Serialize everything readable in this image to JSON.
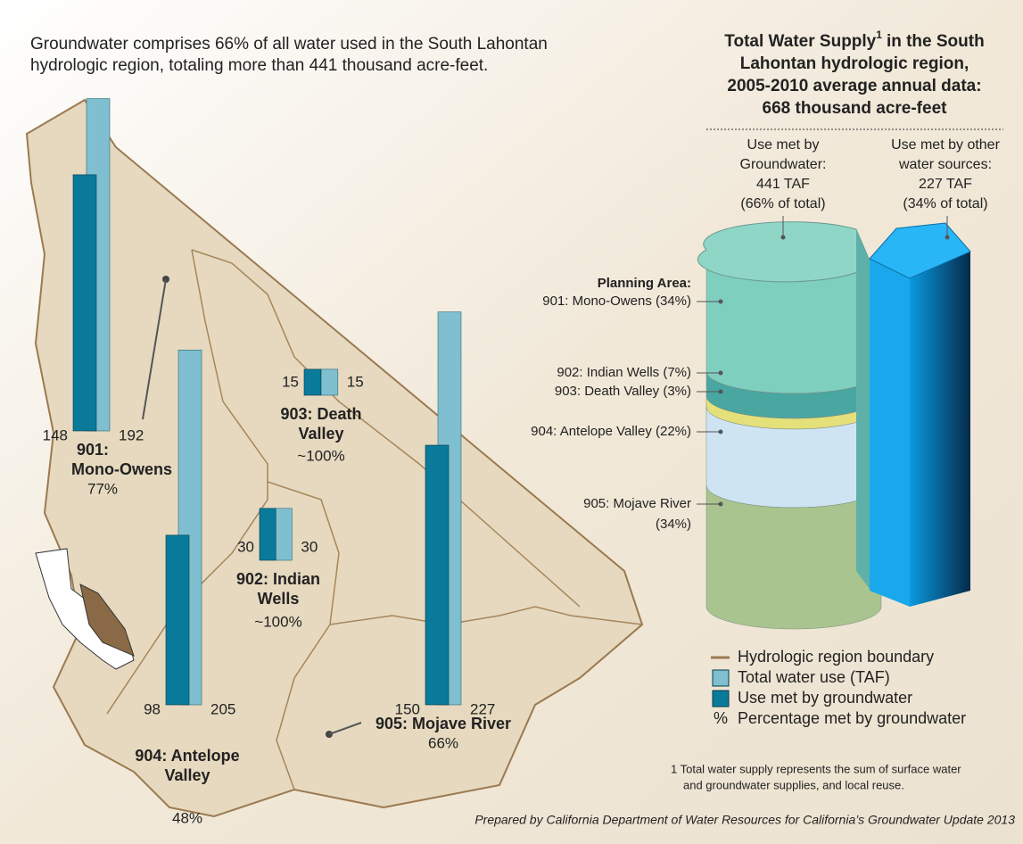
{
  "intro_lines": [
    "Groundwater comprises 66% of all water used in the South Lahontan",
    "hydrologic region, totaling more than 441 thousand acre-feet."
  ],
  "supply": {
    "title": {
      "before_note": "Total Water Supply",
      "note": "1",
      "after_note": "in the South",
      "lines": [
        "Lahontan hydrologic region,",
        "2005-2010 average annual data:",
        "668 thousand acre-feet"
      ]
    },
    "groundwater_lines": [
      "Use met by",
      "Groundwater:",
      "441 TAF",
      "(66% of total)"
    ],
    "other_lines": [
      "Use met by other",
      "water sources:",
      "227 TAF",
      "(34% of total)"
    ],
    "planning_area_heading": "Planning Area:",
    "segments": [
      {
        "label_lines": [
          "901: Mono-Owens (34%)"
        ],
        "share": 34,
        "color": "#7fcfbf"
      },
      {
        "label_lines": [
          "902: Indian Wells (7%)"
        ],
        "share": 7,
        "color": "#4aa6a0"
      },
      {
        "label_lines": [
          "903: Death Valley (3%)"
        ],
        "share": 3,
        "color": "#e4e07a"
      },
      {
        "label_lines": [
          "904: Antelope Valley (22%)"
        ],
        "share": 22,
        "color": "#cfe4f3"
      },
      {
        "label_lines": [
          "905: Mojave River",
          "(34%)"
        ],
        "share": 34,
        "color": "#a9c48e"
      }
    ]
  },
  "bar_colors": {
    "total": "#7fbfcf",
    "groundwater": "#0a7a9a"
  },
  "areas": [
    {
      "name_lines": [
        "901:",
        "Mono-Owens"
      ],
      "percent": "77%",
      "total": 192,
      "groundwater": 148
    },
    {
      "name_lines": [
        "902: Indian",
        "Wells"
      ],
      "percent": "~100%",
      "total": 30,
      "groundwater": 30
    },
    {
      "name_lines": [
        "903: Death",
        "Valley"
      ],
      "percent": "~100%",
      "total": 15,
      "groundwater": 15
    },
    {
      "name_lines": [
        "904: Antelope",
        "Valley"
      ],
      "percent": "48%",
      "total": 205,
      "groundwater": 98
    },
    {
      "name_lines": [
        "905: Mojave River"
      ],
      "percent": "66%",
      "total": 227,
      "groundwater": 150
    }
  ],
  "legend": [
    {
      "symbol": "line",
      "label": "Hydrologic region boundary"
    },
    {
      "symbol": "total",
      "label": "Total water use (TAF)"
    },
    {
      "symbol": "groundwater",
      "label": "Use met by groundwater"
    },
    {
      "symbol": "%",
      "label": "Percentage met by groundwater"
    }
  ],
  "footnote_lines": [
    "1 Total water supply represents the sum of surface water",
    "and groundwater supplies, and local reuse."
  ],
  "credit": "Prepared by California Department of Water Resources for California’s Groundwater Update 2013"
}
